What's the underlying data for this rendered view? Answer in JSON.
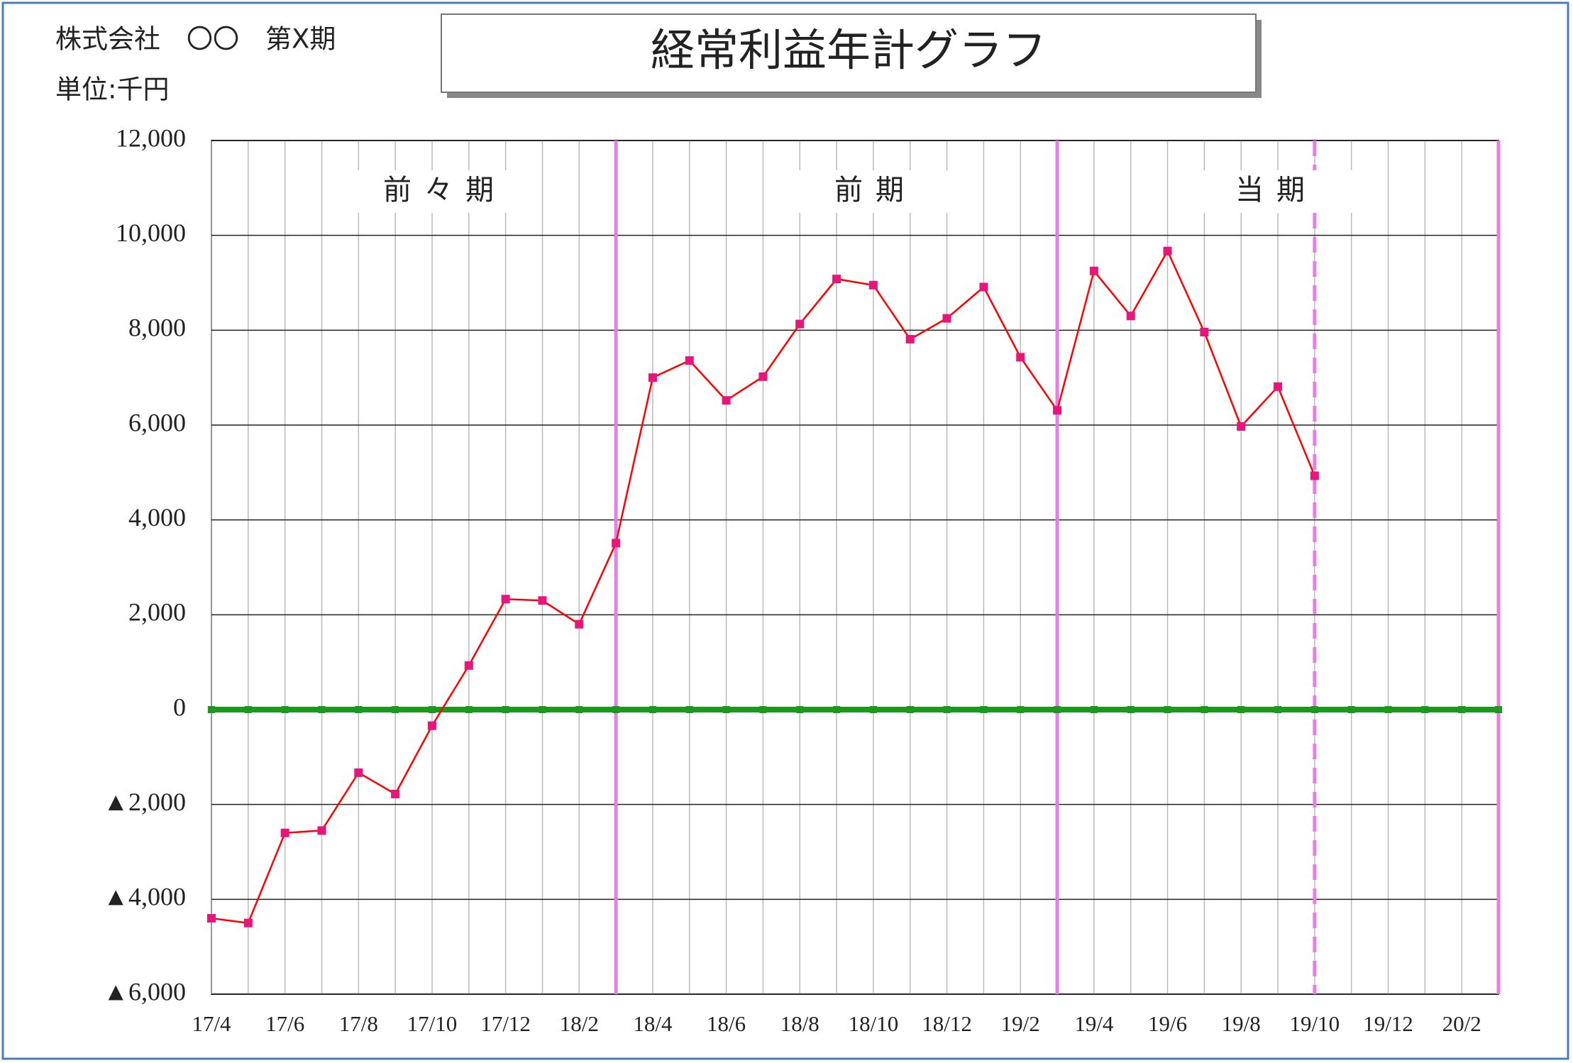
{
  "header": {
    "company": "株式会社　〇〇　第X期",
    "unit": "単位:千円"
  },
  "chart_data": {
    "type": "line",
    "title": "経常利益年計グラフ",
    "annotations": [
      "前々期",
      "前期",
      "当期"
    ],
    "categories": [
      "17/4",
      null,
      "17/6",
      null,
      "17/8",
      null,
      "17/10",
      null,
      "17/12",
      null,
      "18/2",
      null,
      "18/4",
      null,
      "18/6",
      null,
      "18/8",
      null,
      "18/10",
      null,
      "18/12",
      null,
      "19/2",
      null,
      "19/4",
      null,
      "19/6",
      null,
      "19/8",
      null,
      "19/10",
      null,
      "19/12",
      null,
      "20/2",
      null
    ],
    "series": [
      {
        "name": "経常利益",
        "color": "#ff0000",
        "marker_color": "#e8157a",
        "values": [
          -4400,
          -4500,
          -2600,
          -2550,
          -1330,
          -1780,
          -340,
          930,
          2330,
          2300,
          1800,
          3510,
          7000,
          7360,
          6520,
          7020,
          8130,
          9080,
          8950,
          7810,
          8250,
          8910,
          7430,
          6310,
          9250,
          8300,
          9670,
          7960,
          5970,
          6810,
          4930,
          null,
          null,
          null,
          null,
          null
        ]
      }
    ],
    "ylim": [
      -6000,
      12000
    ],
    "yticks": [
      {
        "value": -6000,
        "label": "▲6,000"
      },
      {
        "value": -4000,
        "label": "▲4,000"
      },
      {
        "value": -2000,
        "label": "▲2,000"
      },
      0,
      {
        "value": 2000,
        "label": "2,000"
      },
      {
        "value": 4000,
        "label": "4,000"
      },
      {
        "value": 6000,
        "label": "6,000"
      },
      {
        "value": 8000,
        "label": "8,000"
      },
      {
        "value": 10000,
        "label": "10,000"
      },
      {
        "value": 12000,
        "label": "12,000"
      }
    ],
    "grid": true,
    "zero_line_color": "#1a9a1a",
    "period_line_color": "#e67ee6"
  }
}
